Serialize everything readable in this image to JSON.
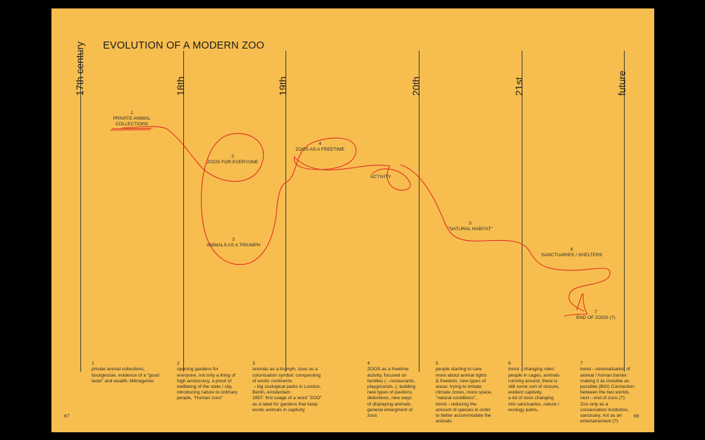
{
  "title": "EVOLUTION OF A MODERN ZOO",
  "eras": [
    "17th century",
    "18th",
    "19th",
    "20th",
    "21st",
    "future"
  ],
  "stages": [
    {
      "num": "1",
      "label": "PRIVATE ANIMAL\nCOLLECTIONS"
    },
    {
      "num": "2",
      "label": "ZOOS FOR EVERYONE"
    },
    {
      "num": "3",
      "label": "ANIMALS AS A TRIUMPH"
    },
    {
      "num": "4",
      "label": "ZOOS AS A FREETIME"
    },
    {
      "num": "",
      "label": "ACTIVITY"
    },
    {
      "num": "5",
      "label": "\"NATURAL HABITAT\""
    },
    {
      "num": "6",
      "label": "SANCTUARIES / SHELTERS"
    },
    {
      "num": "7",
      "label": "END OF ZOOS (?)"
    }
  ],
  "notes": [
    {
      "num": "1",
      "text": "private animal collections,\nbourgeoisie, evidence of a \"good\ntaste\" and wealth, Ménageries"
    },
    {
      "num": "2",
      "text": "opening gardens for\neveryone, not only a thing of\nhigh aristocracy, a proof of\nwellbeing of the state / city,\nintroducing nature to ordinary\npeople, \"Human zoos\""
    },
    {
      "num": "3",
      "text": "animals as a triumph, zoos as a\ncolonisation symbol: conquesting\nof exotic continents\n→big zoological parks in London,\nBerlin, Amsterdam\n1857: first usage of a word \"ZOO\"\nas a label for gardens that keep\nexotic animals in captivity"
    },
    {
      "num": "4",
      "text": "ZOOS as a freetime\nactivity, focused on\nfamilies (→restaurants,\nplaygrounds..), building\nnew types of pavilons,\ndetentions, new ways\nof displaying animals,\ngeneral enlargment of\nzoos"
    },
    {
      "num": "5",
      "text": "people starting to care\nmore about animal rights\n& freedom, new types of\nareas: trying to imitate\nclimate zones, more space,\n\"natural conditions\",\ntrend→reducing the\namount of species in order\nto better accommodate the\nanimals"
    },
    {
      "num": "6",
      "text": "trend→changing roles:\npeople in cages, animals\nrunning around, there is\nstill some sort of closure,\nevident captivity,\na lot of zoos changing\ninto sanctuaries, nature /\necology parks.."
    },
    {
      "num": "7",
      "text": "trend→minimalisation of\nanimal / human barrier:\nmaking it as invisible as\npossible (BIG) Connection\nbetween the two worlds.\nnext→end of zoos (?)\nZoo only as a\nconservation institution,\nsanctuary, not as an\nentertainement (?)"
    }
  ],
  "page_left": "67",
  "page_right": "68",
  "colors": {
    "background": "#F7BE4F",
    "curve": "#E32F22",
    "text": "#2a2a2a"
  }
}
